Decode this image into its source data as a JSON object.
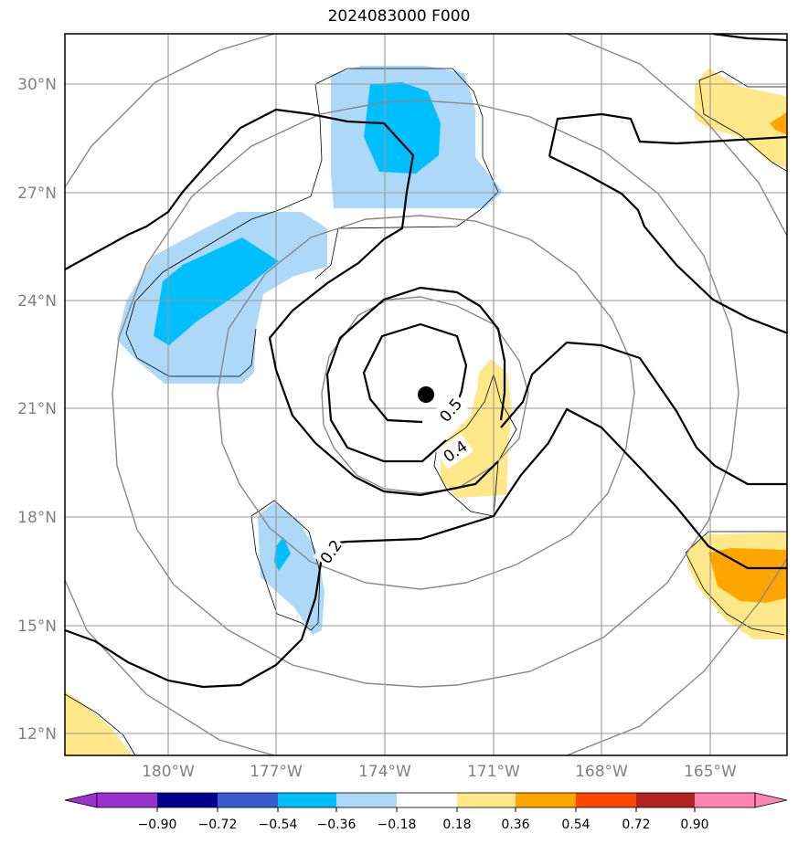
{
  "title": "2024083000 F000",
  "map": {
    "lat_labels": [
      "30°N",
      "27°N",
      "24°N",
      "21°N",
      "18°N",
      "15°N",
      "12°N"
    ],
    "lon_labels": [
      "180°W",
      "177°W",
      "174°W",
      "171°W",
      "168°W",
      "165°W"
    ],
    "contour_labels": [
      "0.5",
      "0.4",
      "0.2"
    ],
    "center_marker": "storm-center-dot"
  },
  "colorbar": {
    "ticks": [
      "−0.90",
      "−0.72",
      "−0.54",
      "−0.36",
      "−0.18",
      "0.18",
      "0.36",
      "0.54",
      "0.72",
      "0.90"
    ],
    "colors": [
      "#9932cc",
      "#00008b",
      "#3a5bd0",
      "#00bfff",
      "#add8f7",
      "#ffffff",
      "#ffe88a",
      "#ffa500",
      "#ff4500",
      "#b22222",
      "#ff85b0"
    ]
  }
}
